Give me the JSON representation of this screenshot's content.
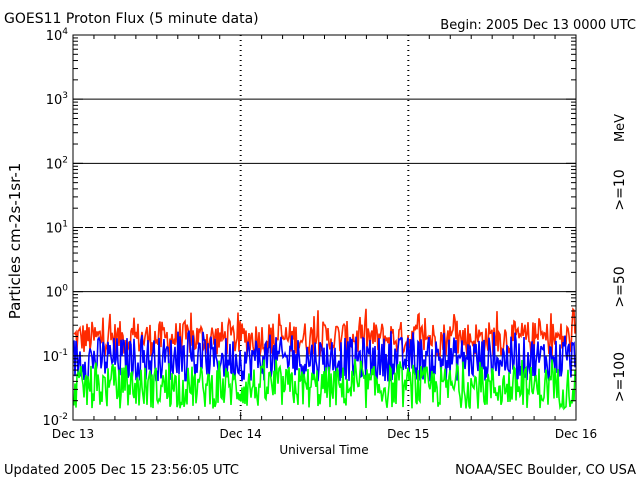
{
  "header": {
    "title": "GOES11 Proton Flux (5 minute data)",
    "begin": "Begin: 2005 Dec 13 0000 UTC"
  },
  "footer": {
    "updated": "Updated 2005 Dec 15 23:56:05 UTC",
    "credit": "NOAA/SEC Boulder, CO USA"
  },
  "colors": {
    "ge10": "#ff2a00",
    "ge50": "#0000ff",
    "ge100": "#00ff00",
    "axis": "#000000",
    "background": "#ffffff"
  },
  "chart_data": {
    "type": "line",
    "title": "GOES11 Proton Flux (5 minute data)",
    "xlabel": "Universal Time",
    "ylabel": "Particles cm-2s-1sr-1",
    "yscale": "log",
    "ylim": [
      0.01,
      10000
    ],
    "y_tick_labels": [
      {
        "base": "10",
        "exp": "-2",
        "value": 0.01
      },
      {
        "base": "10",
        "exp": "-1",
        "value": 0.1
      },
      {
        "base": "10",
        "exp": "0",
        "value": 1
      },
      {
        "base": "10",
        "exp": "1",
        "value": 10
      },
      {
        "base": "10",
        "exp": "2",
        "value": 100
      },
      {
        "base": "10",
        "exp": "3",
        "value": 1000
      },
      {
        "base": "10",
        "exp": "4",
        "value": 10000
      }
    ],
    "x_tick_labels": [
      "Dec 13",
      "Dec 14",
      "Dec 15",
      "Dec 16"
    ],
    "xlim": [
      "2005-12-13 00:00",
      "2005-12-16 00:00"
    ],
    "threshold_lines": [
      {
        "value": 1,
        "style": "solid"
      },
      {
        "value": 10,
        "style": "dashed"
      },
      {
        "value": 100,
        "style": "solid"
      },
      {
        "value": 1000,
        "style": "solid"
      },
      {
        "value": 0.1,
        "style": "solid"
      }
    ],
    "legend_unit": "MeV",
    "legend_placement": "right",
    "series": [
      {
        "name": ">=10",
        "color_key": "ge10",
        "typical_range": [
          0.1,
          0.35
        ],
        "peak": 0.55
      },
      {
        "name": ">=50",
        "color_key": "ge50",
        "typical_range": [
          0.04,
          0.2
        ],
        "peak": 0.25
      },
      {
        "name": ">=100",
        "color_key": "ge100",
        "typical_range": [
          0.015,
          0.07
        ],
        "peak": 0.09
      }
    ]
  }
}
